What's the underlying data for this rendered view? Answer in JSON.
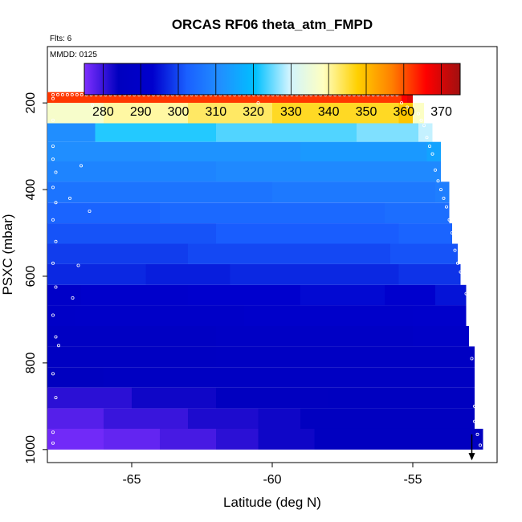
{
  "chart_data": {
    "type": "heatmap",
    "title": "ORCAS RF06 theta_atm_FMPD",
    "flights_note": "Flts: 6",
    "date_note": "MMDD: 0125",
    "xlabel": "Latitude (deg N)",
    "ylabel": "PSXC (mbar)",
    "xlim": [
      -68.0,
      -52.0
    ],
    "ylim": [
      1030,
      70
    ],
    "y_inverted": true,
    "xticks": [
      -65,
      -60,
      -55
    ],
    "xtick_labels": [
      "-65",
      "-60",
      "-55"
    ],
    "yticks": [
      200,
      400,
      600,
      800,
      1000
    ],
    "ytick_labels": [
      "200",
      "400",
      "600",
      "800",
      "1000"
    ],
    "colorbar": {
      "min": 275,
      "max": 375,
      "ticks": [
        280,
        290,
        300,
        310,
        320,
        330,
        340,
        350,
        360,
        370
      ],
      "tick_labels": [
        "280",
        "290",
        "300",
        "310",
        "320",
        "330",
        "340",
        "350",
        "360",
        "370"
      ],
      "colors": [
        "#7f2fff",
        "#0000bf",
        "#0000cd",
        "#1a60ff",
        "#2090ff",
        "#00c0ff",
        "#d0f4ff",
        "#ffffc0",
        "#ffd000",
        "#ff8000",
        "#ff0000",
        "#a01010"
      ]
    },
    "grid": false,
    "rows": [
      {
        "p_top": 175,
        "p_bot": 200,
        "segments": [
          [
            -68.0,
            -55.4,
            362
          ],
          [
            -55.4,
            -55.2,
            366
          ],
          [
            -55.2,
            -55.0,
            369
          ]
        ]
      },
      {
        "p_top": 200,
        "p_bot": 247,
        "segments": [
          [
            -68.0,
            -66.0,
            337
          ],
          [
            -66.0,
            -63.0,
            340
          ],
          [
            -63.0,
            -60.0,
            343
          ],
          [
            -60.0,
            -55.5,
            346
          ],
          [
            -55.5,
            -55.0,
            349
          ],
          [
            -55.0,
            -54.6,
            338
          ]
        ]
      },
      {
        "p_top": 247,
        "p_bot": 290,
        "segments": [
          [
            -68.0,
            -66.3,
            311
          ],
          [
            -66.3,
            -62.0,
            322
          ],
          [
            -62.0,
            -57.0,
            324
          ],
          [
            -57.0,
            -54.8,
            326
          ],
          [
            -54.8,
            -54.3,
            329
          ]
        ]
      },
      {
        "p_top": 290,
        "p_bot": 335,
        "segments": [
          [
            -68.0,
            -64.0,
            311
          ],
          [
            -64.0,
            -59.0,
            312
          ],
          [
            -59.0,
            -54.5,
            313
          ],
          [
            -54.5,
            -54.0,
            315
          ]
        ]
      },
      {
        "p_top": 335,
        "p_bot": 382,
        "segments": [
          [
            -68.0,
            -62.0,
            309
          ],
          [
            -62.0,
            -54.5,
            310
          ],
          [
            -54.5,
            -54.0,
            310
          ]
        ]
      },
      {
        "p_top": 382,
        "p_bot": 430,
        "segments": [
          [
            -68.0,
            -60.0,
            306
          ],
          [
            -60.0,
            -54.2,
            307
          ],
          [
            -54.2,
            -53.7,
            308
          ]
        ]
      },
      {
        "p_top": 430,
        "p_bot": 478,
        "segments": [
          [
            -68.0,
            -64.0,
            303
          ],
          [
            -64.0,
            -56.0,
            304
          ],
          [
            -56.0,
            -53.7,
            305
          ]
        ]
      },
      {
        "p_top": 478,
        "p_bot": 525,
        "segments": [
          [
            -68.0,
            -62.0,
            301
          ],
          [
            -62.0,
            -55.5,
            302
          ],
          [
            -55.5,
            -53.6,
            303
          ]
        ]
      },
      {
        "p_top": 525,
        "p_bot": 572,
        "segments": [
          [
            -68.0,
            -63.0,
            299
          ],
          [
            -63.0,
            -55.8,
            300
          ],
          [
            -55.8,
            -53.4,
            301
          ]
        ]
      },
      {
        "p_top": 572,
        "p_bot": 620,
        "segments": [
          [
            -68.0,
            -64.5,
            297
          ],
          [
            -64.5,
            -61.5,
            296
          ],
          [
            -61.5,
            -58.0,
            297
          ],
          [
            -58.0,
            -55.5,
            297
          ],
          [
            -55.5,
            -53.3,
            298
          ]
        ]
      },
      {
        "p_top": 620,
        "p_bot": 667,
        "segments": [
          [
            -68.0,
            -66.8,
            290
          ],
          [
            -66.8,
            -63.0,
            292
          ],
          [
            -63.0,
            -59.0,
            293
          ],
          [
            -59.0,
            -56.0,
            294
          ],
          [
            -56.0,
            -54.2,
            293
          ],
          [
            -54.2,
            -53.1,
            295
          ]
        ]
      },
      {
        "p_top": 667,
        "p_bot": 715,
        "segments": [
          [
            -68.0,
            -67.0,
            289
          ],
          [
            -67.0,
            -61.0,
            290
          ],
          [
            -61.0,
            -55.0,
            291
          ],
          [
            -55.0,
            -53.1,
            292
          ]
        ]
      },
      {
        "p_top": 715,
        "p_bot": 762,
        "segments": [
          [
            -68.0,
            -62.0,
            287
          ],
          [
            -62.0,
            -55.0,
            288
          ],
          [
            -55.0,
            -53.0,
            289
          ]
        ]
      },
      {
        "p_top": 762,
        "p_bot": 810,
        "segments": [
          [
            -68.0,
            -62.0,
            286
          ],
          [
            -62.0,
            -56.0,
            287
          ],
          [
            -56.0,
            -52.8,
            287
          ]
        ]
      },
      {
        "p_top": 810,
        "p_bot": 857,
        "segments": [
          [
            -68.0,
            -66.0,
            285
          ],
          [
            -66.0,
            -60.0,
            286
          ],
          [
            -60.0,
            -52.8,
            286
          ]
        ]
      },
      {
        "p_top": 857,
        "p_bot": 905,
        "segments": [
          [
            -68.0,
            -65.0,
            281
          ],
          [
            -65.0,
            -62.0,
            283
          ],
          [
            -62.0,
            -58.0,
            284
          ],
          [
            -58.0,
            -52.8,
            285
          ]
        ]
      },
      {
        "p_top": 905,
        "p_bot": 952,
        "segments": [
          [
            -68.0,
            -66.0,
            278
          ],
          [
            -66.0,
            -63.0,
            280
          ],
          [
            -63.0,
            -60.5,
            282
          ],
          [
            -60.5,
            -59.0,
            283
          ],
          [
            -59.0,
            -52.8,
            284
          ]
        ]
      },
      {
        "p_top": 952,
        "p_bot": 1000,
        "segments": [
          [
            -68.0,
            -66.0,
            276
          ],
          [
            -66.0,
            -64.0,
            277
          ],
          [
            -64.0,
            -62.0,
            279
          ],
          [
            -62.0,
            -60.5,
            281
          ],
          [
            -60.5,
            -58.5,
            283
          ],
          [
            -58.5,
            -52.5,
            284
          ]
        ]
      }
    ],
    "points": {
      "top_row_pressure": 181,
      "top_row_x_range": [
        -67.8,
        -55.4
      ],
      "edge_points": [
        [
          -67.8,
          190
        ],
        [
          -66.4,
          205
        ],
        [
          -60.5,
          200
        ],
        [
          -55.4,
          200
        ],
        [
          -55.2,
          210
        ],
        [
          -54.8,
          225
        ],
        [
          -54.7,
          240
        ],
        [
          -54.6,
          252
        ],
        [
          -54.5,
          280
        ],
        [
          -54.4,
          300
        ],
        [
          -54.3,
          318
        ],
        [
          -54.2,
          355
        ],
        [
          -54.1,
          380
        ],
        [
          -54.0,
          400
        ],
        [
          -53.9,
          420
        ],
        [
          -53.8,
          440
        ],
        [
          -53.7,
          470
        ],
        [
          -53.6,
          500
        ],
        [
          -53.5,
          540
        ],
        [
          -53.4,
          570
        ],
        [
          -53.3,
          590
        ],
        [
          -53.2,
          610
        ],
        [
          -53.1,
          640
        ],
        [
          -53.0,
          700
        ],
        [
          -52.9,
          790
        ],
        [
          -52.8,
          900
        ],
        [
          -52.8,
          935
        ],
        [
          -52.7,
          965
        ],
        [
          -52.6,
          990
        ],
        [
          -67.8,
          240
        ],
        [
          -67.8,
          300
        ],
        [
          -67.8,
          330
        ],
        [
          -67.7,
          360
        ],
        [
          -67.8,
          395
        ],
        [
          -67.7,
          430
        ],
        [
          -67.8,
          470
        ],
        [
          -67.7,
          520
        ],
        [
          -67.8,
          570
        ],
        [
          -67.7,
          625
        ],
        [
          -67.8,
          690
        ],
        [
          -67.7,
          740
        ],
        [
          -67.8,
          825
        ],
        [
          -67.8,
          960
        ],
        [
          -67.8,
          985
        ],
        [
          -67.2,
          420
        ],
        [
          -66.8,
          345
        ],
        [
          -66.5,
          450
        ],
        [
          -66.9,
          575
        ],
        [
          -67.1,
          650
        ],
        [
          -67.6,
          760
        ],
        [
          -67.7,
          880
        ]
      ]
    }
  }
}
